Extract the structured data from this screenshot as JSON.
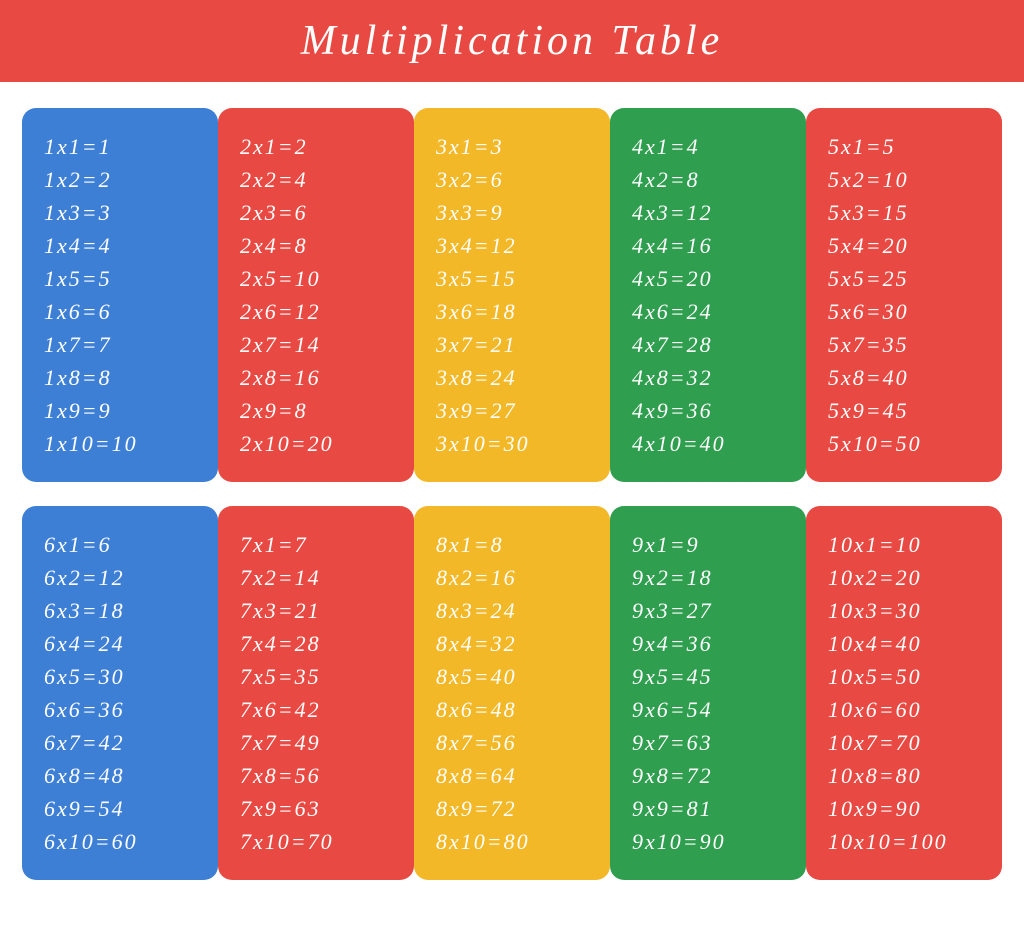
{
  "title": "Multiplication  Table",
  "header_bg": "#e84a43",
  "text_color": "#ffffff",
  "font_family": "cursive",
  "title_fontsize": 42,
  "line_fontsize": 22,
  "panel_radius": 14,
  "colors": {
    "blue": "#3e7fd6",
    "red": "#e84a43",
    "yellow": "#f2b827",
    "green": "#2f9f4f"
  },
  "rows": [
    [
      {
        "n": 1,
        "color": "blue"
      },
      {
        "n": 2,
        "color": "red"
      },
      {
        "n": 3,
        "color": "yellow"
      },
      {
        "n": 4,
        "color": "green"
      },
      {
        "n": 5,
        "color": "red"
      }
    ],
    [
      {
        "n": 6,
        "color": "blue"
      },
      {
        "n": 7,
        "color": "red"
      },
      {
        "n": 8,
        "color": "yellow"
      },
      {
        "n": 9,
        "color": "green"
      },
      {
        "n": 10,
        "color": "red"
      }
    ]
  ],
  "multiplicands": [
    1,
    2,
    3,
    4,
    5,
    6,
    7,
    8,
    9,
    10
  ],
  "errata": {
    "2x9": 8
  }
}
